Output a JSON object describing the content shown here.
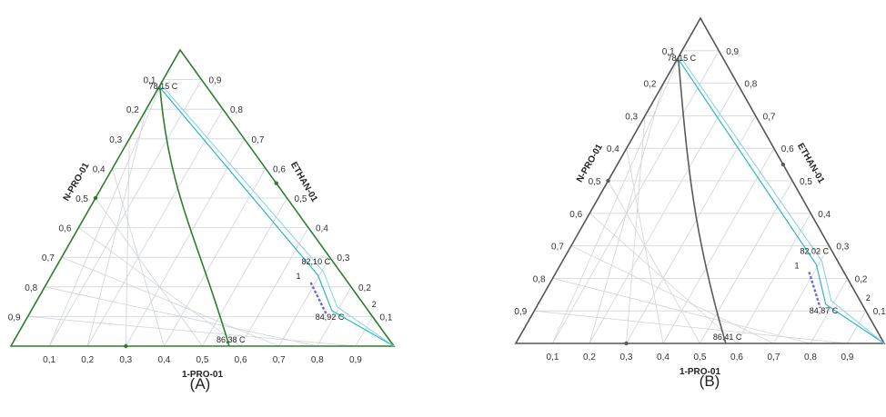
{
  "panels": [
    {
      "id": "A",
      "caption": "(A)",
      "frame_color": "#2e7d2e",
      "bottom_axis_title": "1-PRO-01",
      "left_axis_title": "N-PRO-01",
      "right_axis_title": "ETHAN-01",
      "bottom_ticks": [
        "0,1",
        "0,2",
        "0,3",
        "0,4",
        "0,5",
        "0,6",
        "0,7",
        "0,8",
        "0,9"
      ],
      "left_ticks": [
        "0,1",
        "0,2",
        "0,3",
        "0,4",
        "0,5",
        "0,6",
        "0,7",
        "0,8",
        "0,9"
      ],
      "right_ticks": [
        "0,1",
        "0,2",
        "0,3",
        "0,4",
        "0,5",
        "0,6",
        "0,7",
        "0,8",
        "0,9"
      ],
      "point_labels": {
        "top": "78,15 C",
        "bottom": "86,38 C",
        "mid": "82,10 C",
        "low": "84,92 C"
      },
      "markers": {
        "one": "1",
        "two": "2"
      }
    },
    {
      "id": "B",
      "caption": "(B)",
      "frame_color": "#555555",
      "bottom_axis_title": "1-PRO-01",
      "left_axis_title": "N-PRO-01",
      "right_axis_title": "ETHAN-01",
      "bottom_ticks": [
        "0,1",
        "0,2",
        "0,3",
        "0,4",
        "0,5",
        "0,6",
        "0,7",
        "0,8",
        "0,9"
      ],
      "left_ticks": [
        "0,1",
        "0,2",
        "0,3",
        "0,4",
        "0,5",
        "0,6",
        "0,7",
        "0,8",
        "0,9"
      ],
      "right_ticks": [
        "0,1",
        "0,2",
        "0,3",
        "0,4",
        "0,5",
        "0,6",
        "0,7",
        "0,8",
        "0,9"
      ],
      "point_labels": {
        "top": "78,15 C",
        "bottom": "86,41 C",
        "mid": "82,02 C",
        "low": "84,87 C"
      },
      "markers": {
        "one": "1",
        "two": "2"
      }
    }
  ]
}
